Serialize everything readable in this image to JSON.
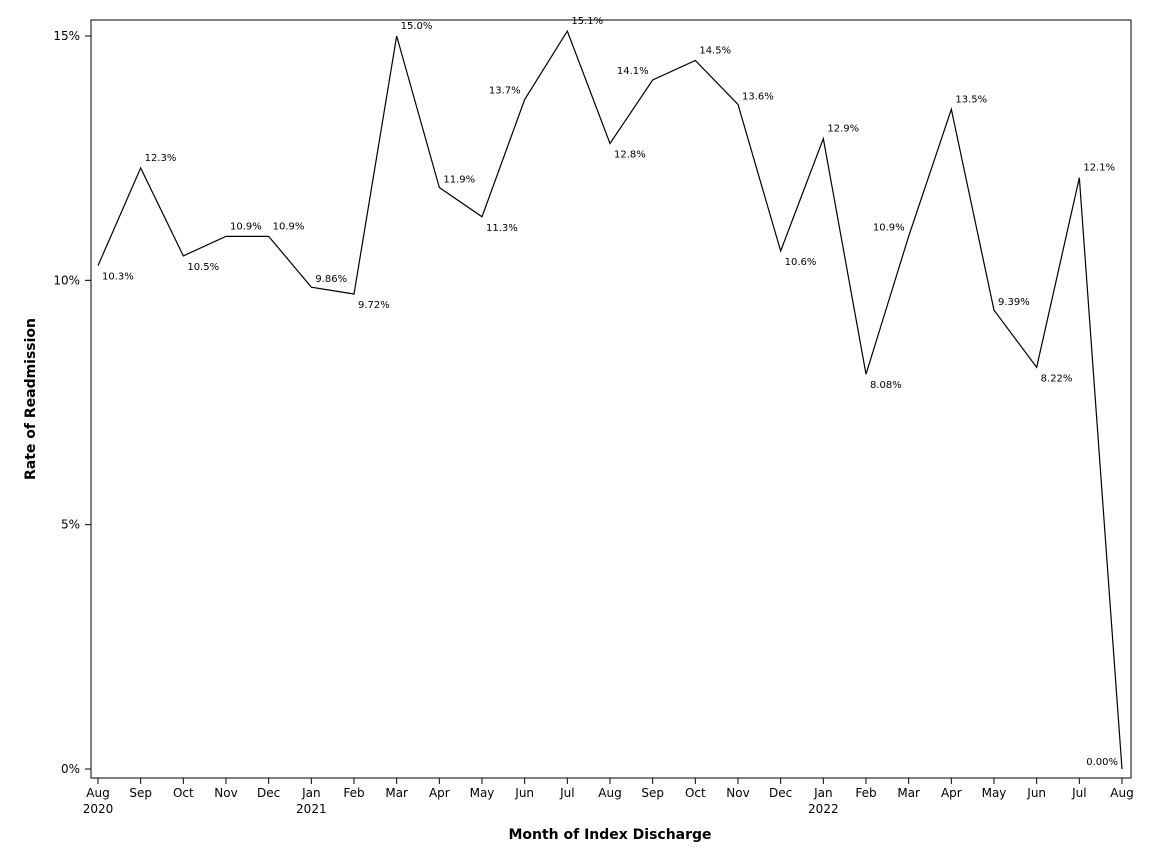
{
  "chart_data": {
    "type": "line",
    "xlabel": "Month of Index Discharge",
    "ylabel": "Rate of Readmission",
    "ylim": [
      0,
      15.5
    ],
    "y_ticks": [
      "0%",
      "5%",
      "10%",
      "15%"
    ],
    "y_tick_values": [
      0,
      5,
      10,
      15
    ],
    "grid": false,
    "line_color": "#000000",
    "x": [
      {
        "month": "Aug",
        "year": "2020"
      },
      {
        "month": "Sep",
        "year": ""
      },
      {
        "month": "Oct",
        "year": ""
      },
      {
        "month": "Nov",
        "year": ""
      },
      {
        "month": "Dec",
        "year": ""
      },
      {
        "month": "Jan",
        "year": "2021"
      },
      {
        "month": "Feb",
        "year": ""
      },
      {
        "month": "Mar",
        "year": ""
      },
      {
        "month": "Apr",
        "year": ""
      },
      {
        "month": "May",
        "year": ""
      },
      {
        "month": "Jun",
        "year": ""
      },
      {
        "month": "Jul",
        "year": ""
      },
      {
        "month": "Aug",
        "year": ""
      },
      {
        "month": "Sep",
        "year": ""
      },
      {
        "month": "Oct",
        "year": ""
      },
      {
        "month": "Nov",
        "year": ""
      },
      {
        "month": "Dec",
        "year": ""
      },
      {
        "month": "Jan",
        "year": "2022"
      },
      {
        "month": "Feb",
        "year": ""
      },
      {
        "month": "Mar",
        "year": ""
      },
      {
        "month": "Apr",
        "year": ""
      },
      {
        "month": "May",
        "year": ""
      },
      {
        "month": "Jun",
        "year": ""
      },
      {
        "month": "Jul",
        "year": ""
      },
      {
        "month": "Aug",
        "year": ""
      }
    ],
    "series": [
      {
        "values": [
          10.3,
          12.3,
          10.5,
          10.9,
          10.9,
          9.86,
          9.72,
          15.0,
          11.9,
          11.3,
          13.7,
          15.1,
          12.8,
          14.1,
          14.5,
          13.6,
          10.6,
          12.9,
          8.08,
          10.9,
          13.5,
          9.39,
          8.22,
          12.1,
          0.0
        ],
        "labels": [
          "10.3%",
          "12.3%",
          "10.5%",
          "10.9%",
          "10.9%",
          "9.86%",
          "9.72%",
          "15.0%",
          "11.9%",
          "11.3%",
          "13.7%",
          "15.1%",
          "12.8%",
          "14.1%",
          "14.5%",
          "13.6%",
          "10.6%",
          "12.9%",
          "8.08%",
          "10.9%",
          "13.5%",
          "9.39%",
          "8.22%",
          "12.1%",
          "0.00%"
        ]
      }
    ]
  }
}
